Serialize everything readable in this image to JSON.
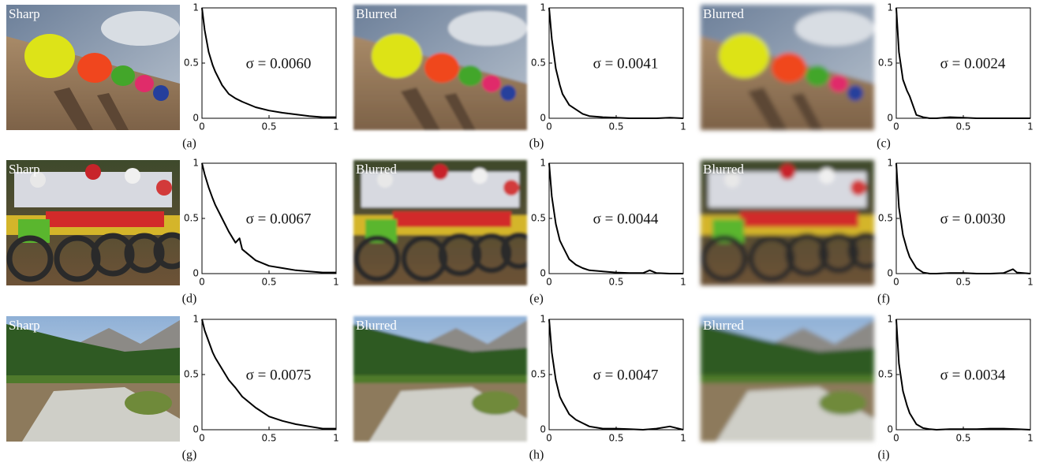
{
  "chart_data": [
    {
      "type": "line",
      "image_label": "Sharp",
      "annotation": "σ = 0.0060",
      "caption": "(a)",
      "x": [
        0,
        0.02,
        0.05,
        0.08,
        0.1,
        0.15,
        0.2,
        0.25,
        0.3,
        0.4,
        0.5,
        0.6,
        0.7,
        0.8,
        0.9,
        1
      ],
      "series": [
        {
          "color": "#000000",
          "values": [
            1,
            0.8,
            0.6,
            0.48,
            0.42,
            0.3,
            0.22,
            0.18,
            0.15,
            0.1,
            0.07,
            0.05,
            0.035,
            0.02,
            0.01,
            0.01
          ]
        }
      ],
      "xlim": [
        0,
        1
      ],
      "ylim": [
        0,
        1
      ],
      "xticks": [
        0,
        0.5,
        1
      ],
      "yticks": [
        0,
        0.5,
        1
      ]
    },
    {
      "type": "line",
      "image_label": "Blurred",
      "annotation": "σ = 0.0041",
      "caption": "(b)",
      "x": [
        0,
        0.02,
        0.05,
        0.08,
        0.1,
        0.15,
        0.2,
        0.25,
        0.3,
        0.4,
        0.5,
        0.6,
        0.7,
        0.8,
        0.9,
        1
      ],
      "series": [
        {
          "color": "#000000",
          "values": [
            1,
            0.72,
            0.45,
            0.3,
            0.22,
            0.12,
            0.08,
            0.04,
            0.02,
            0.01,
            0.005,
            0,
            0,
            0,
            0.005,
            0
          ]
        }
      ],
      "xlim": [
        0,
        1
      ],
      "ylim": [
        0,
        1
      ],
      "xticks": [
        0,
        0.5,
        1
      ],
      "yticks": [
        0,
        0.5,
        1
      ]
    },
    {
      "type": "line",
      "image_label": "Blurred",
      "annotation": "σ = 0.0024",
      "caption": "(c)",
      "x": [
        0,
        0.02,
        0.05,
        0.08,
        0.1,
        0.15,
        0.2,
        0.25,
        0.3,
        0.4,
        0.5,
        0.6,
        0.7,
        0.8,
        0.9,
        1
      ],
      "series": [
        {
          "color": "#000000",
          "values": [
            1,
            0.6,
            0.35,
            0.25,
            0.2,
            0.03,
            0.01,
            0,
            0,
            0.01,
            0.005,
            0,
            0,
            0,
            0,
            0
          ]
        }
      ],
      "xlim": [
        0,
        1
      ],
      "ylim": [
        0,
        1
      ],
      "xticks": [
        0,
        0.5,
        1
      ],
      "yticks": [
        0,
        0.5,
        1
      ]
    },
    {
      "type": "line",
      "image_label": "Sharp",
      "annotation": "σ = 0.0067",
      "caption": "(d)",
      "x": [
        0,
        0.02,
        0.05,
        0.08,
        0.1,
        0.15,
        0.2,
        0.25,
        0.28,
        0.3,
        0.4,
        0.5,
        0.6,
        0.7,
        0.8,
        0.9,
        1
      ],
      "series": [
        {
          "color": "#000000",
          "values": [
            1,
            0.9,
            0.78,
            0.68,
            0.62,
            0.5,
            0.38,
            0.28,
            0.32,
            0.22,
            0.12,
            0.07,
            0.05,
            0.03,
            0.02,
            0.01,
            0.01
          ]
        }
      ],
      "xlim": [
        0,
        1
      ],
      "ylim": [
        0,
        1
      ],
      "xticks": [
        0,
        0.5,
        1
      ],
      "yticks": [
        0,
        0.5,
        1
      ]
    },
    {
      "type": "line",
      "image_label": "Blurred",
      "annotation": "σ = 0.0044",
      "caption": "(e)",
      "x": [
        0,
        0.02,
        0.05,
        0.08,
        0.1,
        0.15,
        0.2,
        0.25,
        0.3,
        0.4,
        0.5,
        0.6,
        0.7,
        0.75,
        0.8,
        0.9,
        1
      ],
      "series": [
        {
          "color": "#000000",
          "values": [
            1,
            0.7,
            0.45,
            0.3,
            0.25,
            0.13,
            0.08,
            0.05,
            0.03,
            0.02,
            0.01,
            0.005,
            0.005,
            0.03,
            0.005,
            0,
            0
          ]
        }
      ],
      "xlim": [
        0,
        1
      ],
      "ylim": [
        0,
        1
      ],
      "xticks": [
        0,
        0.5,
        1
      ],
      "yticks": [
        0,
        0.5,
        1
      ]
    },
    {
      "type": "line",
      "image_label": "Blurred",
      "annotation": "σ = 0.0030",
      "caption": "(f)",
      "x": [
        0,
        0.02,
        0.05,
        0.08,
        0.1,
        0.15,
        0.2,
        0.25,
        0.3,
        0.4,
        0.5,
        0.6,
        0.7,
        0.8,
        0.87,
        0.9,
        1
      ],
      "series": [
        {
          "color": "#000000",
          "values": [
            1,
            0.6,
            0.35,
            0.22,
            0.15,
            0.05,
            0.01,
            0,
            0,
            0.005,
            0.005,
            0,
            0,
            0.005,
            0.04,
            0.01,
            0
          ]
        }
      ],
      "xlim": [
        0,
        1
      ],
      "ylim": [
        0,
        1
      ],
      "xticks": [
        0,
        0.5,
        1
      ],
      "yticks": [
        0,
        0.5,
        1
      ]
    },
    {
      "type": "line",
      "image_label": "Sharp",
      "annotation": "σ = 0.0075",
      "caption": "(g)",
      "x": [
        0,
        0.02,
        0.05,
        0.08,
        0.1,
        0.15,
        0.2,
        0.25,
        0.3,
        0.4,
        0.5,
        0.6,
        0.7,
        0.8,
        0.9,
        1
      ],
      "series": [
        {
          "color": "#000000",
          "values": [
            1,
            0.9,
            0.8,
            0.7,
            0.65,
            0.55,
            0.45,
            0.38,
            0.3,
            0.2,
            0.12,
            0.08,
            0.05,
            0.03,
            0.01,
            0.01
          ]
        }
      ],
      "xlim": [
        0,
        1
      ],
      "ylim": [
        0,
        1
      ],
      "xticks": [
        0,
        0.5,
        1
      ],
      "yticks": [
        0,
        0.5,
        1
      ]
    },
    {
      "type": "line",
      "image_label": "Blurred",
      "annotation": "σ = 0.0047",
      "caption": "(h)",
      "x": [
        0,
        0.02,
        0.05,
        0.08,
        0.1,
        0.15,
        0.2,
        0.25,
        0.3,
        0.4,
        0.5,
        0.6,
        0.7,
        0.8,
        0.9,
        1
      ],
      "series": [
        {
          "color": "#000000",
          "values": [
            1,
            0.7,
            0.45,
            0.3,
            0.25,
            0.14,
            0.09,
            0.06,
            0.03,
            0.01,
            0.01,
            0.005,
            0,
            0.01,
            0.03,
            0
          ]
        }
      ],
      "xlim": [
        0,
        1
      ],
      "ylim": [
        0,
        1
      ],
      "xticks": [
        0,
        0.5,
        1
      ],
      "yticks": [
        0,
        0.5,
        1
      ]
    },
    {
      "type": "line",
      "image_label": "Blurred",
      "annotation": "σ = 0.0034",
      "caption": "(i)",
      "x": [
        0,
        0.02,
        0.05,
        0.08,
        0.1,
        0.15,
        0.2,
        0.25,
        0.3,
        0.4,
        0.5,
        0.6,
        0.7,
        0.8,
        0.9,
        1
      ],
      "series": [
        {
          "color": "#000000",
          "values": [
            1,
            0.6,
            0.35,
            0.22,
            0.15,
            0.05,
            0.015,
            0.005,
            0,
            0.005,
            0.005,
            0.005,
            0.01,
            0.01,
            0.005,
            0
          ]
        }
      ],
      "xlim": [
        0,
        1
      ],
      "ylim": [
        0,
        1
      ],
      "xticks": [
        0,
        0.5,
        1
      ],
      "yticks": [
        0,
        0.5,
        1
      ]
    }
  ]
}
